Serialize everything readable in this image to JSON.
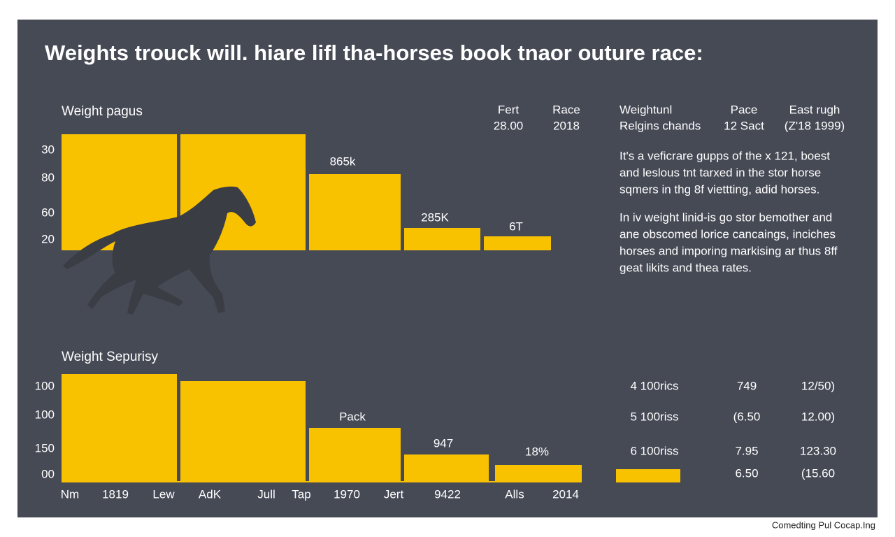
{
  "header": {
    "title": "Weights trouck will. hiare lifl tha-horses book tnaor outure race:"
  },
  "top_panel": {
    "title": "Weight pagus",
    "axis_labels": [
      "30",
      "80",
      "60",
      "20"
    ],
    "bar_labels": [
      "865k",
      "285K",
      "6T"
    ],
    "columns": [
      {
        "head": "Fert",
        "value": "28.00"
      },
      {
        "head": "Race",
        "value": "2018"
      }
    ]
  },
  "side_table": {
    "columns": [
      {
        "head": "Weightunl",
        "value": "Relgins chands"
      },
      {
        "head": "Pace",
        "value": "12 Sact"
      },
      {
        "head": "East rugh",
        "value": "(Z'18 1999)"
      }
    ]
  },
  "paragraphs": [
    [
      "It's a veficrare gupps of the x 121, boest",
      "and leslous tnt tarxed in the stor horse",
      "sqmers in thg 8f viettting, adid horses."
    ],
    [
      "In iv weight linid-is go stor bemother and",
      "ane obscomed lorice cancaings, inciches",
      "horses and imporing markising ar thus 8ff",
      "geat likits and thea rates."
    ]
  ],
  "bottom_panel": {
    "title": "Weight Sepurisy",
    "axis_labels": [
      "100",
      "100",
      "150",
      "00"
    ],
    "bar_labels": [
      "Pack",
      "947",
      "18%"
    ],
    "x_labels": [
      "Nm",
      "1819",
      "Lew",
      "AdK",
      "Jull",
      "Tap",
      "1970",
      "Jert",
      "9422",
      "Alls",
      "2014"
    ]
  },
  "bottom_table": {
    "rows": [
      [
        "4 100rics",
        "749",
        "12/50)"
      ],
      [
        "5 100riss",
        "(6.50",
        "12.00)"
      ],
      [
        "6 100riss",
        "7.95",
        "123.30"
      ],
      [
        "",
        "6.50",
        "(15.60"
      ]
    ]
  },
  "footer": {
    "text": "Comedting Pul Cocap.Ing"
  }
}
